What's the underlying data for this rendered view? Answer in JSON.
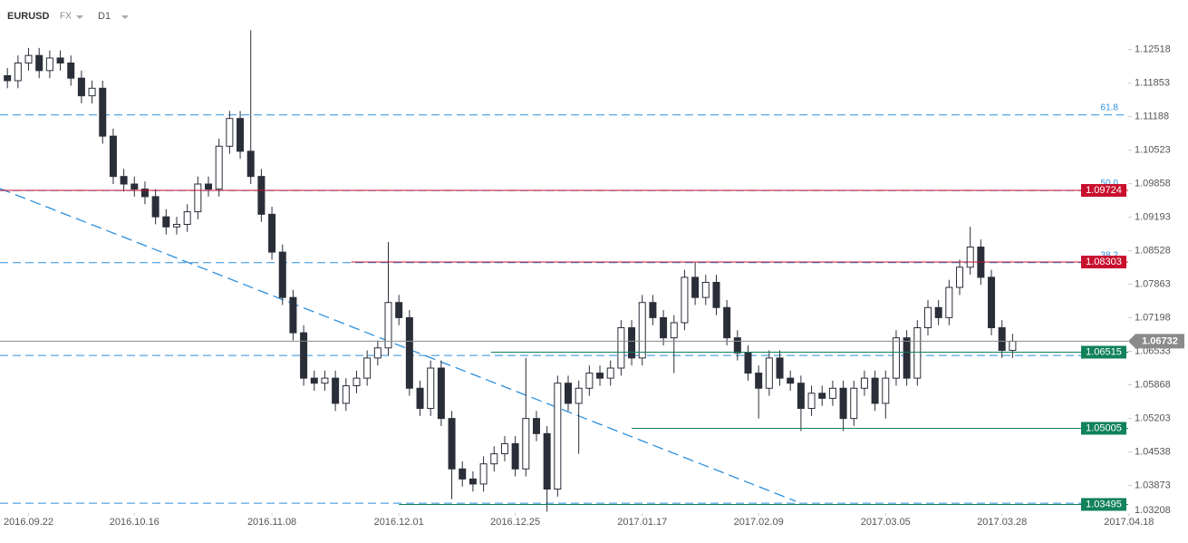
{
  "header": {
    "symbol": "EURUSD",
    "market": "FX",
    "interval": "D1"
  },
  "chart_data": {
    "type": "candlestick",
    "open": [
      1.12,
      1.119,
      1.1225,
      1.124,
      1.121,
      1.1235,
      1.1225,
      1.1195,
      1.116,
      1.1175,
      1.108,
      1.1,
      1.0985,
      1.0975,
      1.096,
      1.092,
      1.09,
      1.0905,
      1.093,
      1.0985,
      1.0975,
      1.106,
      1.1115,
      1.105,
      1.1,
      1.0925,
      1.085,
      1.076,
      1.069,
      1.06,
      1.059,
      1.06,
      1.055,
      1.0585,
      1.06,
      1.064,
      1.066,
      1.075,
      1.072,
      1.058,
      1.054,
      1.062,
      1.052,
      1.042,
      1.04,
      1.039,
      1.043,
      1.045,
      1.047,
      1.042,
      1.052,
      1.049,
      1.038,
      1.059,
      1.055,
      1.058,
      1.061,
      1.06,
      1.062,
      1.07,
      1.064,
      1.075,
      1.072,
      1.068,
      1.071,
      1.08,
      1.076,
      1.079,
      1.074,
      1.068,
      1.065,
      1.061,
      1.058,
      1.064,
      1.06,
      1.059,
      1.054,
      1.057,
      1.056,
      1.058,
      1.052,
      1.058,
      1.06,
      1.055,
      1.06,
      1.068,
      1.06,
      1.07,
      1.074,
      1.072,
      1.078,
      1.082,
      1.086,
      1.08,
      1.07,
      1.0655
    ],
    "high": [
      1.1215,
      1.124,
      1.1255,
      1.1255,
      1.125,
      1.125,
      1.124,
      1.121,
      1.119,
      1.119,
      1.1095,
      1.1015,
      1.1,
      1.099,
      1.0975,
      1.0935,
      1.092,
      1.0945,
      1.1,
      1.1,
      1.1075,
      1.113,
      1.113,
      1.129,
      1.1015,
      1.094,
      1.0865,
      1.0775,
      1.0705,
      1.0615,
      1.0615,
      1.0615,
      1.06,
      1.0615,
      1.0655,
      1.0675,
      1.087,
      1.0765,
      1.0735,
      1.0595,
      1.0635,
      1.0635,
      1.0535,
      1.0435,
      1.0415,
      1.0445,
      1.0465,
      1.0485,
      1.0485,
      1.064,
      1.0535,
      1.0505,
      1.0605,
      1.0605,
      1.0595,
      1.0625,
      1.0625,
      1.0635,
      1.0715,
      1.0715,
      1.0765,
      1.0765,
      1.0735,
      1.0725,
      1.0815,
      1.083,
      1.0805,
      1.0805,
      1.0755,
      1.0695,
      1.0665,
      1.0625,
      1.0655,
      1.0655,
      1.0615,
      1.0605,
      1.0585,
      1.0585,
      1.0595,
      1.0595,
      1.0595,
      1.0615,
      1.0615,
      1.0615,
      1.0695,
      1.0695,
      1.0715,
      1.0755,
      1.0755,
      1.0795,
      1.0835,
      1.09,
      1.0875,
      1.0815,
      1.0715,
      1.0688
    ],
    "low": [
      1.1175,
      1.1175,
      1.121,
      1.1195,
      1.1195,
      1.121,
      1.118,
      1.1145,
      1.1145,
      1.1065,
      1.0985,
      1.097,
      1.096,
      1.0945,
      1.0905,
      1.0885,
      1.0885,
      1.089,
      1.0915,
      1.096,
      1.096,
      1.1045,
      1.1035,
      1.0985,
      1.091,
      1.0835,
      1.0745,
      1.0675,
      1.0585,
      1.0575,
      1.0575,
      1.0535,
      1.0535,
      1.057,
      1.0585,
      1.0625,
      1.0645,
      1.0705,
      1.0565,
      1.0525,
      1.0525,
      1.0505,
      1.036,
      1.0385,
      1.0375,
      1.0375,
      1.0415,
      1.0435,
      1.0405,
      1.0405,
      1.0475,
      1.0335,
      1.0365,
      1.0535,
      1.045,
      1.0565,
      1.0585,
      1.0585,
      1.0605,
      1.0625,
      1.0625,
      1.0705,
      1.0665,
      1.061,
      1.0695,
      1.0745,
      1.0745,
      1.0725,
      1.0665,
      1.0635,
      1.0595,
      1.052,
      1.0565,
      1.0585,
      1.0575,
      1.0495,
      1.0525,
      1.0545,
      1.0545,
      1.0495,
      1.0505,
      1.0565,
      1.0535,
      1.052,
      1.0585,
      1.0585,
      1.0585,
      1.0685,
      1.0705,
      1.0705,
      1.0765,
      1.0805,
      1.0785,
      1.0685,
      1.064,
      1.064
    ],
    "close": [
      1.119,
      1.1225,
      1.124,
      1.121,
      1.1235,
      1.1225,
      1.1195,
      1.116,
      1.1175,
      1.108,
      1.1,
      1.0985,
      1.0975,
      1.096,
      1.092,
      1.09,
      1.0905,
      1.093,
      1.0985,
      1.0975,
      1.106,
      1.1115,
      1.105,
      1.1,
      1.0925,
      1.085,
      1.076,
      1.069,
      1.06,
      1.059,
      1.06,
      1.055,
      1.0585,
      1.06,
      1.064,
      1.066,
      1.075,
      1.072,
      1.058,
      1.054,
      1.062,
      1.052,
      1.042,
      1.04,
      1.039,
      1.043,
      1.045,
      1.047,
      1.042,
      1.052,
      1.049,
      1.038,
      1.059,
      1.055,
      1.058,
      1.061,
      1.06,
      1.062,
      1.07,
      1.064,
      1.075,
      1.072,
      1.068,
      1.071,
      1.08,
      1.076,
      1.079,
      1.074,
      1.068,
      1.065,
      1.061,
      1.058,
      1.064,
      1.06,
      1.059,
      1.054,
      1.057,
      1.056,
      1.058,
      1.052,
      1.058,
      1.06,
      1.055,
      1.06,
      1.068,
      1.06,
      1.07,
      1.074,
      1.072,
      1.078,
      1.082,
      1.086,
      1.08,
      1.07,
      1.0655,
      1.0673
    ],
    "up_color": "#ffffff",
    "down_color": "#2a2e39",
    "xlim": [
      -0.7,
      105.5
    ],
    "xticks": [
      {
        "value": 2,
        "label": "2016.09.22"
      },
      {
        "value": 12,
        "label": "2016.10.16"
      },
      {
        "value": 25,
        "label": "2016.11.08"
      },
      {
        "value": 37,
        "label": "2016.12.01"
      },
      {
        "value": 48,
        "label": "2016.12.25"
      },
      {
        "value": 60,
        "label": "2017.01.17"
      },
      {
        "value": 71,
        "label": "2017.02.09"
      },
      {
        "value": 83,
        "label": "2017.03.05"
      },
      {
        "value": 94,
        "label": "2017.03.28"
      },
      {
        "value": 106,
        "label": "2017.04.18"
      }
    ],
    "ylim": [
      1.03,
      1.135
    ],
    "yticks": [
      1.12518,
      1.11853,
      1.11188,
      1.10523,
      1.09858,
      1.09193,
      1.08528,
      1.07863,
      1.07198,
      1.06533,
      1.05868,
      1.05203,
      1.04538,
      1.03873,
      1.03208
    ],
    "fib_levels": [
      {
        "value": 1.1122,
        "label": "61.8"
      },
      {
        "value": 1.0972,
        "label": "50.0"
      },
      {
        "value": 1.0829,
        "label": "38.2"
      },
      {
        "value": 1.0645
      },
      {
        "value": 1.0352
      }
    ],
    "fib_color": "#2d8fdc",
    "trendline": {
      "x": [
        -0.7,
        74.5
      ],
      "y": [
        1.0976,
        1.0356
      ]
    },
    "levels": [
      {
        "value": 1.09724,
        "from": -0.7,
        "color": "#c8102e"
      },
      {
        "value": 1.08303,
        "from": 32.5,
        "color": "#c8102e"
      },
      {
        "value": 1.06515,
        "from": 45.7,
        "color": "#11825a"
      },
      {
        "value": 1.05005,
        "from": 59,
        "color": "#11825a"
      },
      {
        "value": 1.03495,
        "from": 37,
        "color": "#11825a"
      }
    ],
    "last_price": 1.06732,
    "last_color": "#8a8a8a"
  }
}
